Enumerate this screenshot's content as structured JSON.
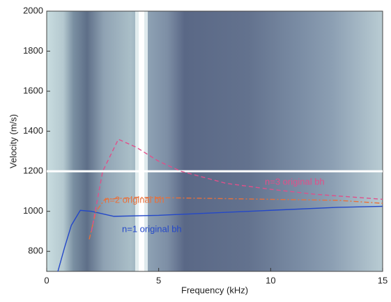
{
  "chart_data": {
    "type": "line",
    "x_label": "Frequency (kHz)",
    "y_label": "Velocity (m/s)",
    "xlim": [
      0,
      15
    ],
    "ylim": [
      700,
      2000
    ],
    "xticks": [
      0,
      5,
      10,
      15
    ],
    "yticks": [
      800,
      1000,
      1200,
      1400,
      1600,
      1800,
      2000
    ],
    "hline": 1200,
    "series": [
      {
        "name": "n=1 original bh",
        "color": "#2448c8",
        "style": "solid",
        "x": [
          0.5,
          0.8,
          1.1,
          1.5,
          2,
          3,
          5,
          7,
          10,
          13,
          15
        ],
        "values": [
          700,
          820,
          930,
          1005,
          1000,
          975,
          980,
          990,
          1005,
          1020,
          1025
        ]
      },
      {
        "name": "n=2 original bh",
        "color": "#e8703a",
        "style": "dashdot",
        "x": [
          1.9,
          2.2,
          2.6,
          4,
          7,
          10,
          13,
          15
        ],
        "values": [
          860,
          1000,
          1060,
          1070,
          1065,
          1060,
          1055,
          1040
        ]
      },
      {
        "name": "n=3 original bh",
        "color": "#e0508a",
        "style": "dashed",
        "x": [
          2,
          2.5,
          3.2,
          4,
          5,
          6,
          8,
          10,
          12,
          15
        ],
        "values": [
          900,
          1200,
          1360,
          1320,
          1250,
          1200,
          1140,
          1110,
          1085,
          1060
        ]
      }
    ]
  }
}
